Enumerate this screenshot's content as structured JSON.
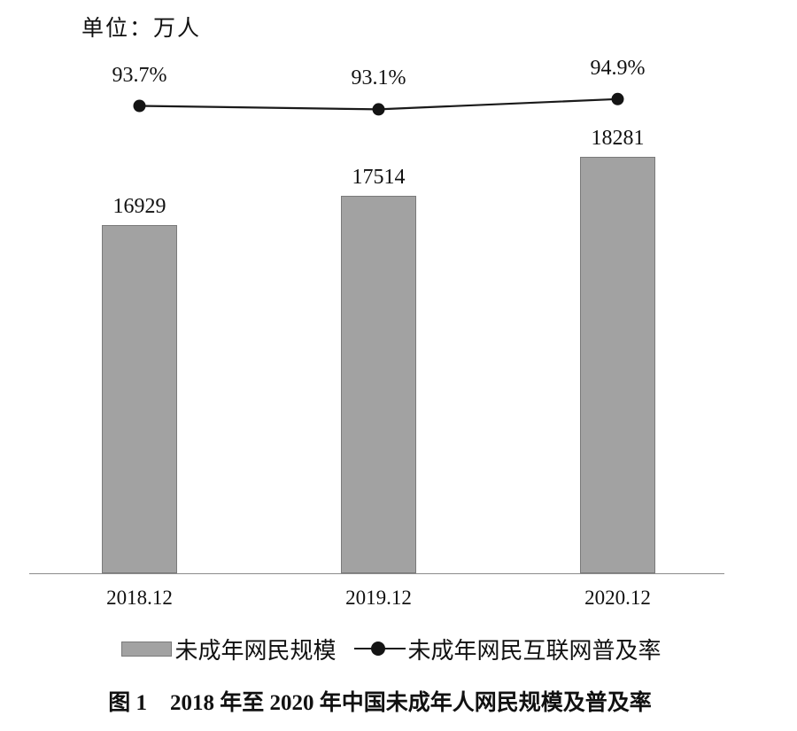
{
  "unit_label": "单位：万人",
  "chart_data": {
    "type": "bar",
    "title": "图 1 2018 年至 2020 年中国未成年人网民规模及普及率",
    "categories": [
      "2018.12",
      "2019.12",
      "2020.12"
    ],
    "series": [
      {
        "name": "未成年网民规模",
        "type": "bar",
        "unit": "万人",
        "values": [
          16929,
          17514,
          18281
        ],
        "color": "#a2a2a2"
      },
      {
        "name": "未成年网民互联网普及率",
        "type": "line",
        "unit": "%",
        "values": [
          93.7,
          93.1,
          94.9
        ],
        "color": "#1a1a1a"
      }
    ],
    "bar_value_labels": [
      "16929",
      "17514",
      "18281"
    ],
    "line_value_labels": [
      "93.7%",
      "93.1%",
      "94.9%"
    ],
    "unit_note": "单位：万人",
    "legend_position": "bottom",
    "grid": false,
    "y_axis_ticks_visible": false
  },
  "legend": {
    "bar_label": "未成年网民规模",
    "line_label": "未成年网民互联网普及率"
  },
  "caption": {
    "prefix": "图 1",
    "text": "2018 年至 2020 年中国未成年人网民规模及普及率"
  },
  "colors": {
    "bar_fill": "#a2a2a2",
    "bar_border": "#7a7a7a",
    "line": "#1a1a1a",
    "dot": "#141414",
    "axis": "#8c8c8c",
    "text": "#111111",
    "background": "#ffffff"
  }
}
